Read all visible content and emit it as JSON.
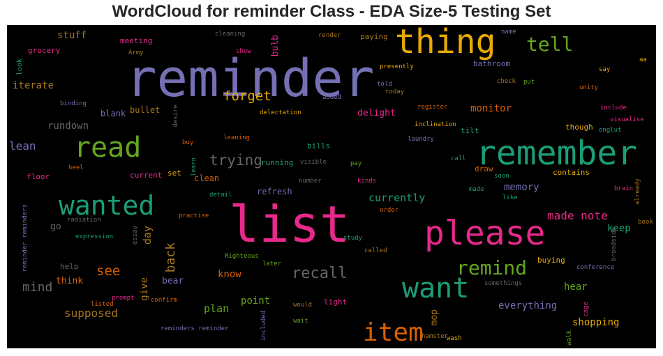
{
  "chart_data": {
    "type": "wordcloud",
    "title": "WordCloud for reminder Class - EDA Size-5 Testing Set",
    "background": "#000000",
    "colormap": "Dark2",
    "words": [
      {
        "text": "reminder",
        "color": "#7570b3"
      },
      {
        "text": "list",
        "color": "#e7298a"
      },
      {
        "text": "remember",
        "color": "#1b9e77"
      },
      {
        "text": "please",
        "color": "#e7298a"
      },
      {
        "text": "thing",
        "color": "#e6ab02"
      },
      {
        "text": "wanted",
        "color": "#1b9e77"
      },
      {
        "text": "read",
        "color": "#66a61e"
      },
      {
        "text": "want",
        "color": "#1b9e77"
      },
      {
        "text": "item",
        "color": "#d95f02"
      },
      {
        "text": "remind",
        "color": "#66a61e"
      },
      {
        "text": "tell",
        "color": "#66a61e"
      },
      {
        "text": "recall",
        "color": "#666666"
      },
      {
        "text": "trying",
        "color": "#666666"
      },
      {
        "text": "forget",
        "color": "#e6ab02"
      },
      {
        "text": "see",
        "color": "#d95f02"
      },
      {
        "text": "mind",
        "color": "#666666"
      },
      {
        "text": "back",
        "color": "#a6761d"
      },
      {
        "text": "made note",
        "color": "#e7298a"
      },
      {
        "text": "supposed",
        "color": "#a6761d"
      },
      {
        "text": "currently",
        "color": "#1b9e77"
      },
      {
        "text": "plan",
        "color": "#66a61e"
      },
      {
        "text": "lean",
        "color": "#7570b3"
      },
      {
        "text": "day",
        "color": "#a6761d"
      },
      {
        "text": "give",
        "color": "#a6761d"
      },
      {
        "text": "everything",
        "color": "#7570b3"
      },
      {
        "text": "shopping",
        "color": "#e6ab02"
      },
      {
        "text": "monitor",
        "color": "#d95f02"
      },
      {
        "text": "memory",
        "color": "#7570b3"
      },
      {
        "text": "rundown",
        "color": "#666666"
      },
      {
        "text": "stuff",
        "color": "#a6761d"
      },
      {
        "text": "iterate",
        "color": "#a6761d"
      },
      {
        "text": "keep",
        "color": "#1b9e77"
      },
      {
        "text": "hear",
        "color": "#66a61e"
      },
      {
        "text": "point",
        "color": "#66a61e"
      },
      {
        "text": "know",
        "color": "#d95f02"
      },
      {
        "text": "bear",
        "color": "#7570b3"
      },
      {
        "text": "think",
        "color": "#d95f02"
      },
      {
        "text": "delight",
        "color": "#e7298a"
      },
      {
        "text": "bulb",
        "color": "#e7298a"
      },
      {
        "text": "mop",
        "color": "#a6761d"
      },
      {
        "text": "go",
        "color": "#666666"
      },
      {
        "text": "refresh",
        "color": "#7570b3"
      },
      {
        "text": "clean",
        "color": "#d95f02"
      },
      {
        "text": "bullet",
        "color": "#a6761d"
      },
      {
        "text": "blank",
        "color": "#7570b3"
      },
      {
        "text": "grocery",
        "color": "#e7298a"
      },
      {
        "text": "meeting",
        "color": "#e7298a"
      },
      {
        "text": "floor",
        "color": "#e7298a"
      },
      {
        "text": "current",
        "color": "#e7298a"
      },
      {
        "text": "set",
        "color": "#e6ab02"
      },
      {
        "text": "running",
        "color": "#1b9e77"
      },
      {
        "text": "bills",
        "color": "#1b9e77"
      },
      {
        "text": "light",
        "color": "#e7298a"
      },
      {
        "text": "contains",
        "color": "#e6ab02"
      },
      {
        "text": "draw",
        "color": "#d95f02"
      },
      {
        "text": "tilt",
        "color": "#1b9e77"
      },
      {
        "text": "though",
        "color": "#e6ab02"
      },
      {
        "text": "buying",
        "color": "#e6ab02"
      },
      {
        "text": "bathroom",
        "color": "#7570b3"
      },
      {
        "text": "help",
        "color": "#666666"
      },
      {
        "text": "paying",
        "color": "#a6761d"
      },
      {
        "text": "look",
        "color": "#1b9e77"
      },
      {
        "text": "inclination",
        "color": "#e6ab02"
      },
      {
        "text": "presently",
        "color": "#e6ab02"
      },
      {
        "text": "register",
        "color": "#d95f02"
      },
      {
        "text": "already",
        "color": "#a6761d"
      },
      {
        "text": "visualise",
        "color": "#e7298a"
      },
      {
        "text": "kinds",
        "color": "#e7298a"
      },
      {
        "text": "practise",
        "color": "#d95f02"
      },
      {
        "text": "called",
        "color": "#a6761d"
      },
      {
        "text": "study",
        "color": "#1b9e77"
      },
      {
        "text": "expression",
        "color": "#1b9e77"
      },
      {
        "text": "conference",
        "color": "#7570b3"
      },
      {
        "text": "cleaning",
        "color": "#666666"
      },
      {
        "text": "show",
        "color": "#e7298a"
      },
      {
        "text": "render",
        "color": "#a6761d"
      },
      {
        "text": "name",
        "color": "#7570b3"
      },
      {
        "text": "aa",
        "color": "#e6ab02"
      },
      {
        "text": "Army",
        "color": "#a6761d"
      },
      {
        "text": "say",
        "color": "#e6ab02"
      },
      {
        "text": "told",
        "color": "#7570b3"
      },
      {
        "text": "today",
        "color": "#a6761d"
      },
      {
        "text": "check",
        "color": "#a6761d"
      },
      {
        "text": "put",
        "color": "#66a61e"
      },
      {
        "text": "unity",
        "color": "#d95f02"
      },
      {
        "text": "added",
        "color": "#7570b3"
      },
      {
        "text": "desire",
        "color": "#666666"
      },
      {
        "text": "binding",
        "color": "#7570b3"
      },
      {
        "text": "delectation",
        "color": "#e6ab02"
      },
      {
        "text": "include",
        "color": "#e7298a"
      },
      {
        "text": "englut",
        "color": "#1b9e77"
      },
      {
        "text": "laundry",
        "color": "#7570b3"
      },
      {
        "text": "leaning",
        "color": "#d95f02"
      },
      {
        "text": "buy",
        "color": "#d95f02"
      },
      {
        "text": "learn",
        "color": "#1b9e77"
      },
      {
        "text": "heel",
        "color": "#d95f02"
      },
      {
        "text": "call",
        "color": "#1b9e77"
      },
      {
        "text": "soon",
        "color": "#1b9e77"
      },
      {
        "text": "visible",
        "color": "#666666"
      },
      {
        "text": "pay",
        "color": "#66a61e"
      },
      {
        "text": "number",
        "color": "#666666"
      },
      {
        "text": "made",
        "color": "#1b9e77"
      },
      {
        "text": "brain",
        "color": "#e7298a"
      },
      {
        "text": "like",
        "color": "#1b9e77"
      },
      {
        "text": "detail",
        "color": "#1b9e77"
      },
      {
        "text": "order",
        "color": "#d95f02"
      },
      {
        "text": "radiation",
        "color": "#666666"
      },
      {
        "text": "essay",
        "color": "#666666"
      },
      {
        "text": "book",
        "color": "#a6761d"
      },
      {
        "text": "reminder reminders",
        "color": "#7570b3"
      },
      {
        "text": "Righteous",
        "color": "#66a61e"
      },
      {
        "text": "later",
        "color": "#66a61e"
      },
      {
        "text": "broadside",
        "color": "#666666"
      },
      {
        "text": "somethings",
        "color": "#666666"
      },
      {
        "text": "listed",
        "color": "#d95f02"
      },
      {
        "text": "prompt",
        "color": "#e7298a"
      },
      {
        "text": "confirm",
        "color": "#d95f02"
      },
      {
        "text": "would",
        "color": "#a6761d"
      },
      {
        "text": "wait",
        "color": "#66a61e"
      },
      {
        "text": "cage",
        "color": "#e7298a"
      },
      {
        "text": "reminders reminder",
        "color": "#7570b3"
      },
      {
        "text": "included",
        "color": "#7570b3"
      },
      {
        "text": "hamster",
        "color": "#a6761d"
      },
      {
        "text": "wash",
        "color": "#e6ab02"
      },
      {
        "text": "walk",
        "color": "#66a61e"
      }
    ]
  }
}
